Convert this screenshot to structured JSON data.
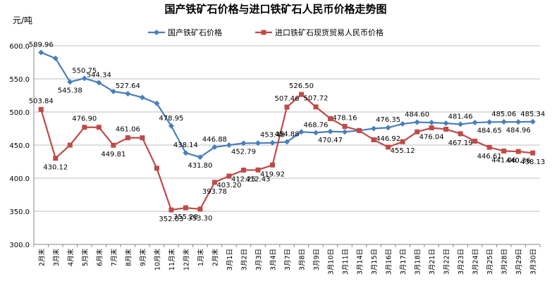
{
  "chart_data": {
    "type": "line",
    "title": "国产铁矿石价格与进口铁矿石人民币价格走势图",
    "ylabel": "元/吨",
    "xlabel": "",
    "ylim": [
      300,
      600
    ],
    "yticks": [
      "300.0",
      "350.0",
      "400.0",
      "450.0",
      "500.0",
      "550.0",
      "600.0"
    ],
    "grid": true,
    "legend_position": "top",
    "categories": [
      "2月末",
      "3月末",
      "4月末",
      "5月末",
      "6月末",
      "7月末",
      "8月末",
      "9月末",
      "10月末",
      "11月末",
      "12月末",
      "1月末",
      "2月末",
      "3月1日",
      "3月2日",
      "3月3日",
      "3月4日",
      "3月7日",
      "3月8日",
      "3月9日",
      "3月10日",
      "3月11日",
      "3月14日",
      "3月15日",
      "3月16日",
      "3月17日",
      "3月18日",
      "3月21日",
      "3月22日",
      "3月23日",
      "3月24日",
      "3月25日",
      "3月28日",
      "3月29日",
      "3月30日"
    ],
    "series": [
      {
        "name": "国产铁矿石价格",
        "color": "#4a7ebb",
        "marker": "diamond",
        "values": [
          589.96,
          581.0,
          545.38,
          550.75,
          544.34,
          531.0,
          527.64,
          522.0,
          513.0,
          478.95,
          438.14,
          431.8,
          446.88,
          450.0,
          452.79,
          453.0,
          453.48,
          454.88,
          470.0,
          468.76,
          470.47,
          470.0,
          472.0,
          475.0,
          476.35,
          482.0,
          484.6,
          484.0,
          483.0,
          481.46,
          484.0,
          484.65,
          485.06,
          484.96,
          485.34
        ],
        "labels": [
          "589.96",
          "",
          "545.38",
          "550.75",
          "544.34",
          "",
          "527.64",
          "",
          "",
          "478.95",
          "438.14",
          "431.80",
          "446.88",
          "",
          "452.79",
          "",
          "453.48",
          "454.88",
          "",
          "468.76",
          "470.47",
          "",
          "",
          "",
          "476.35",
          "",
          "484.60",
          "",
          "",
          "481.46",
          "",
          "484.65",
          "485.06",
          "484.96",
          "485.34"
        ]
      },
      {
        "name": "进口铁矿石现货贸易人民币价格",
        "color": "#be4b48",
        "marker": "square",
        "values": [
          503.84,
          430.12,
          450.0,
          476.9,
          476.9,
          449.81,
          461.06,
          461.0,
          415.0,
          352.03,
          355.28,
          353.3,
          393.78,
          403.2,
          412.25,
          412.43,
          419.92,
          507.46,
          526.5,
          507.72,
          490.0,
          478.16,
          472.0,
          458.0,
          446.92,
          455.12,
          470.0,
          476.04,
          474.0,
          467.19,
          456.0,
          446.61,
          441.06,
          440.36,
          438.13
        ],
        "labels": [
          "503.84",
          "430.12",
          "",
          "476.90",
          "",
          "449.81",
          "461.06",
          "",
          "",
          "352.03",
          "355.28",
          "353.30",
          "393.78",
          "403.20",
          "412.25",
          "412.43",
          "419.92",
          "507.46",
          "526.50",
          "507.72",
          "",
          "478.16",
          "",
          "",
          "446.92",
          "455.12",
          "",
          "476.04",
          "",
          "467.19",
          "",
          "446.61",
          "441.06",
          "440.36",
          "438.13"
        ]
      }
    ]
  }
}
